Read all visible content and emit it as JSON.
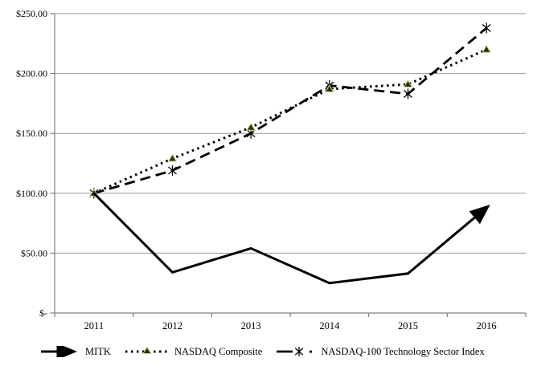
{
  "chart_data": {
    "type": "line",
    "title": "",
    "x": [
      2011,
      2012,
      2013,
      2014,
      2015,
      2016
    ],
    "x_tick_labels": [
      "2011",
      "2012",
      "2013",
      "2014",
      "2015",
      "2016"
    ],
    "y_ticks": [
      0,
      50,
      100,
      150,
      200,
      250
    ],
    "y_tick_labels": [
      "$-",
      "$50.00",
      "$100.00",
      "$150.00",
      "$200.00",
      "$250.00"
    ],
    "ylim": [
      0,
      250
    ],
    "grid": true,
    "legend_position": "bottom",
    "series": [
      {
        "name": "MITK",
        "line_style": "solid",
        "marker": "arrow-end",
        "values": [
          100,
          34,
          54,
          25,
          33,
          88
        ]
      },
      {
        "name": "NASDAQ Composite",
        "line_style": "dotted",
        "marker": "triangle",
        "values": [
          100,
          129,
          155,
          187,
          191,
          220
        ]
      },
      {
        "name": "NASDAQ-100 Technology Sector Index",
        "line_style": "long-dash",
        "marker": "star",
        "values": [
          100,
          119,
          150,
          190,
          183,
          238
        ]
      }
    ],
    "colors": {
      "line": "#000000",
      "grid": "#9a9a9a",
      "axis": "#808080",
      "text": "#000000",
      "triangle_fill": "#2f2f10",
      "triangle_edge": "#c9d78e"
    }
  }
}
